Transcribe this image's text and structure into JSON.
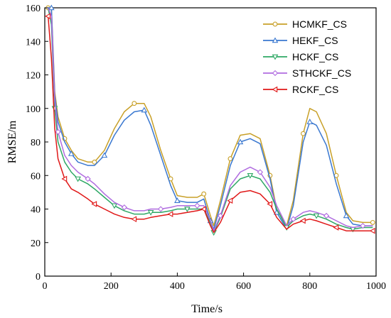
{
  "chart_data": {
    "type": "line",
    "xlabel": "Time/s",
    "ylabel": "RMSE/m",
    "xlim": [
      0,
      1000
    ],
    "ylim": [
      0,
      160
    ],
    "xticks": [
      0,
      200,
      400,
      600,
      800,
      1000
    ],
    "yticks": [
      0,
      20,
      40,
      60,
      80,
      100,
      120,
      140,
      160
    ],
    "grid": false,
    "legend_position": "top-right",
    "series": [
      {
        "name": "HCMKF_CS",
        "color": "#C8A028",
        "marker": "circle",
        "x": [
          10,
          20,
          30,
          40,
          60,
          80,
          100,
          130,
          150,
          180,
          210,
          240,
          270,
          300,
          320,
          350,
          380,
          400,
          430,
          460,
          480,
          500,
          510,
          530,
          560,
          590,
          620,
          650,
          680,
          700,
          730,
          750,
          780,
          800,
          820,
          850,
          880,
          910,
          930,
          960,
          990
        ],
        "y": [
          160,
          160,
          110,
          95,
          82,
          75,
          70,
          68,
          68,
          75,
          88,
          98,
          103,
          103,
          95,
          75,
          58,
          48,
          47,
          47,
          49,
          36,
          30,
          45,
          70,
          84,
          85,
          82,
          60,
          40,
          30,
          45,
          85,
          100,
          98,
          85,
          60,
          38,
          33,
          32,
          32
        ]
      },
      {
        "name": "HEKF_CS",
        "color": "#3A78D0",
        "marker": "triangle-up",
        "x": [
          10,
          20,
          30,
          40,
          60,
          80,
          100,
          130,
          150,
          180,
          210,
          240,
          270,
          300,
          320,
          350,
          380,
          400,
          430,
          460,
          480,
          500,
          510,
          530,
          560,
          590,
          620,
          650,
          680,
          700,
          730,
          750,
          780,
          800,
          820,
          850,
          880,
          910,
          930,
          960,
          990
        ],
        "y": [
          160,
          160,
          108,
          92,
          80,
          73,
          68,
          66,
          66,
          72,
          84,
          93,
          98,
          99,
          90,
          72,
          54,
          45,
          44,
          44,
          46,
          33,
          28,
          42,
          66,
          80,
          82,
          79,
          58,
          38,
          28,
          42,
          80,
          92,
          90,
          78,
          55,
          36,
          31,
          30,
          30
        ]
      },
      {
        "name": "HCKF_CS",
        "color": "#2EA865",
        "marker": "triangle-down",
        "x": [
          10,
          20,
          30,
          40,
          60,
          80,
          100,
          130,
          150,
          180,
          210,
          240,
          270,
          300,
          320,
          350,
          380,
          400,
          430,
          460,
          480,
          500,
          510,
          530,
          560,
          590,
          620,
          650,
          680,
          700,
          730,
          750,
          780,
          800,
          820,
          850,
          880,
          910,
          930,
          960,
          990
        ],
        "y": [
          160,
          150,
          100,
          80,
          68,
          62,
          58,
          55,
          52,
          47,
          42,
          39,
          37,
          37,
          38,
          38,
          39,
          40,
          40,
          40,
          40,
          32,
          26,
          35,
          52,
          58,
          60,
          58,
          50,
          40,
          29,
          33,
          36,
          37,
          36,
          34,
          31,
          29,
          28,
          29,
          29
        ]
      },
      {
        "name": "STHCKF_CS",
        "color": "#B06CE0",
        "marker": "diamond",
        "x": [
          10,
          20,
          30,
          40,
          60,
          80,
          100,
          130,
          150,
          180,
          210,
          240,
          270,
          300,
          320,
          350,
          380,
          400,
          430,
          460,
          480,
          500,
          510,
          530,
          560,
          590,
          620,
          650,
          680,
          700,
          730,
          750,
          780,
          800,
          820,
          850,
          880,
          910,
          930,
          960,
          990
        ],
        "y": [
          160,
          155,
          105,
          86,
          72,
          66,
          62,
          58,
          55,
          49,
          44,
          41,
          39,
          39,
          40,
          40,
          41,
          42,
          42,
          42,
          42,
          33,
          27,
          36,
          54,
          62,
          65,
          62,
          53,
          42,
          30,
          34,
          38,
          39,
          38,
          36,
          33,
          30,
          29,
          30,
          30
        ]
      },
      {
        "name": "RCKF_CS",
        "color": "#E01818",
        "marker": "triangle-left",
        "x": [
          10,
          20,
          30,
          40,
          60,
          80,
          100,
          130,
          150,
          180,
          210,
          240,
          270,
          300,
          320,
          350,
          380,
          400,
          430,
          460,
          480,
          500,
          510,
          530,
          560,
          590,
          620,
          650,
          680,
          700,
          730,
          750,
          780,
          800,
          820,
          850,
          880,
          910,
          930,
          960,
          990
        ],
        "y": [
          155,
          130,
          88,
          70,
          58,
          52,
          50,
          46,
          43,
          40,
          37,
          35,
          34,
          34,
          35,
          36,
          37,
          37,
          38,
          39,
          40,
          30,
          26,
          32,
          45,
          50,
          51,
          49,
          43,
          35,
          28,
          31,
          33,
          34,
          33,
          31,
          29,
          27,
          27,
          27,
          27
        ]
      }
    ]
  }
}
